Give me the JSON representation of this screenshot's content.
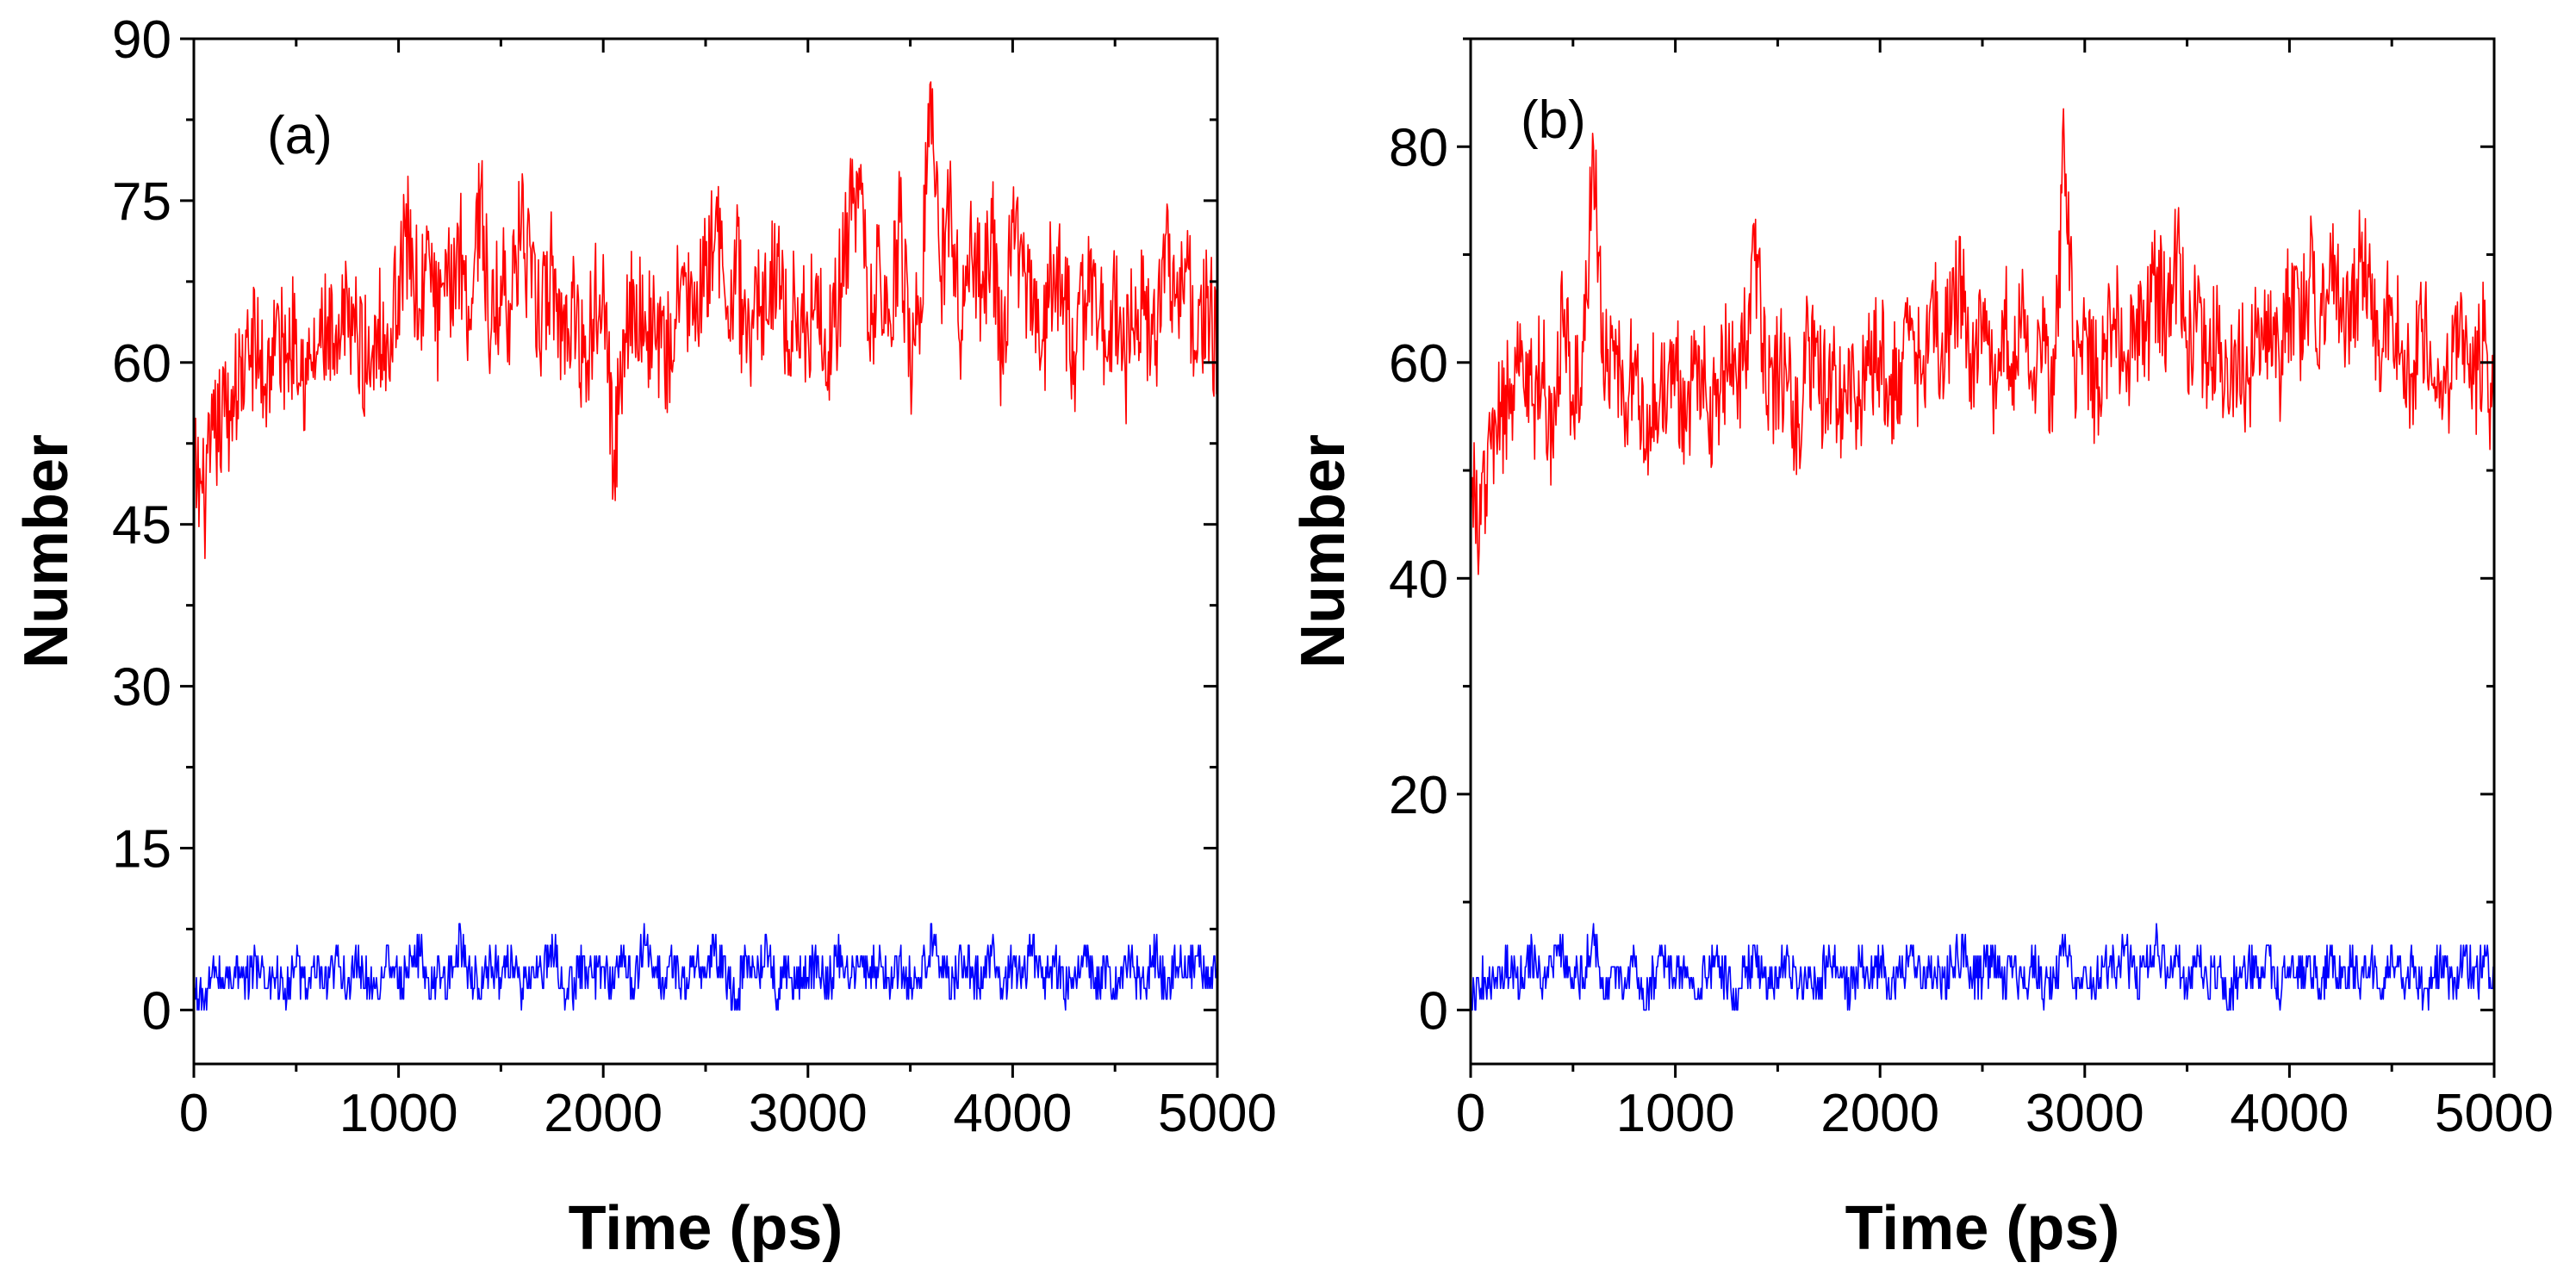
{
  "chart_data": [
    {
      "type": "line",
      "panel_label": "(a)",
      "xlabel": "Time (ps)",
      "ylabel": "Number",
      "xlim": [
        0,
        5000
      ],
      "ylim": [
        -5,
        90
      ],
      "x_ticks": [
        0,
        1000,
        2000,
        3000,
        4000,
        5000
      ],
      "x_tick_labels": [
        "0",
        "1000",
        "2000",
        "3000",
        "4000",
        "5000"
      ],
      "y_ticks": [
        0,
        15,
        30,
        45,
        60,
        75,
        90
      ],
      "y_tick_labels": [
        "0",
        "15",
        "30",
        "45",
        "60",
        "75",
        "90"
      ],
      "series": [
        {
          "name": "red series",
          "color": "#ff0000",
          "x": [
            0,
            50,
            100,
            150,
            200,
            250,
            300,
            350,
            400,
            450,
            500,
            550,
            600,
            650,
            700,
            750,
            800,
            850,
            900,
            950,
            1000,
            1050,
            1100,
            1150,
            1200,
            1250,
            1300,
            1350,
            1400,
            1450,
            1500,
            1550,
            1600,
            1650,
            1700,
            1750,
            1800,
            1850,
            1900,
            1950,
            2000,
            2050,
            2100,
            2150,
            2200,
            2250,
            2300,
            2350,
            2400,
            2450,
            2500,
            2550,
            2600,
            2650,
            2700,
            2750,
            2800,
            2850,
            2900,
            2950,
            3000,
            3050,
            3100,
            3150,
            3200,
            3250,
            3300,
            3350,
            3400,
            3450,
            3500,
            3550,
            3600,
            3650,
            3700,
            3750,
            3800,
            3850,
            3900,
            3950,
            4000,
            4050,
            4100,
            4150,
            4200,
            4250,
            4300,
            4350,
            4400,
            4450,
            4500,
            4550,
            4600,
            4650,
            4700,
            4750,
            4800,
            4850,
            4900,
            4950,
            5000
          ],
          "values": [
            50,
            47,
            53,
            55,
            57,
            60,
            62,
            58,
            63,
            60,
            64,
            58,
            61,
            63,
            59,
            66,
            62,
            60,
            64,
            61,
            68,
            72,
            65,
            70,
            63,
            67,
            71,
            64,
            76,
            62,
            68,
            65,
            73,
            66,
            64,
            69,
            62,
            66,
            60,
            64,
            70,
            49,
            63,
            67,
            62,
            65,
            59,
            64,
            68,
            62,
            69,
            74,
            64,
            70,
            60,
            67,
            64,
            71,
            62,
            66,
            63,
            68,
            61,
            66,
            72,
            78,
            62,
            70,
            64,
            73,
            60,
            66,
            86,
            68,
            75,
            63,
            70,
            66,
            72,
            60,
            73,
            68,
            64,
            62,
            70,
            66,
            61,
            65,
            68,
            63,
            66,
            59,
            67,
            64,
            62,
            72,
            66,
            69,
            60,
            66,
            61
          ]
        },
        {
          "name": "blue series",
          "color": "#0000ff",
          "x": [
            0,
            50,
            100,
            150,
            200,
            250,
            300,
            350,
            400,
            450,
            500,
            550,
            600,
            650,
            700,
            750,
            800,
            850,
            900,
            950,
            1000,
            1050,
            1100,
            1150,
            1200,
            1250,
            1300,
            1350,
            1400,
            1450,
            1500,
            1550,
            1600,
            1650,
            1700,
            1750,
            1800,
            1850,
            1900,
            1950,
            2000,
            2050,
            2100,
            2150,
            2200,
            2250,
            2300,
            2350,
            2400,
            2450,
            2500,
            2550,
            2600,
            2650,
            2700,
            2750,
            2800,
            2850,
            2900,
            2950,
            3000,
            3050,
            3100,
            3150,
            3200,
            3250,
            3300,
            3350,
            3400,
            3450,
            3500,
            3550,
            3600,
            3650,
            3700,
            3750,
            3800,
            3850,
            3900,
            3950,
            4000,
            4050,
            4100,
            4150,
            4200,
            4250,
            4300,
            4350,
            4400,
            4450,
            4500,
            4550,
            4600,
            4650,
            4700,
            4750,
            4800,
            4850,
            4900,
            4950,
            5000
          ],
          "values": [
            1,
            0,
            3,
            2,
            4,
            1,
            5,
            2,
            3,
            0,
            4,
            2,
            3,
            1,
            5,
            2,
            4,
            3,
            1,
            6,
            2,
            3,
            7,
            1,
            4,
            2,
            8,
            3,
            1,
            5,
            2,
            6,
            0,
            4,
            3,
            7,
            2,
            1,
            5,
            3,
            4,
            2,
            6,
            1,
            8,
            3,
            2,
            5,
            1,
            4,
            3,
            7,
            2,
            0,
            5,
            3,
            6,
            1,
            4,
            2,
            3,
            5,
            1,
            7,
            2,
            4,
            3,
            6,
            1,
            5,
            2,
            3,
            8,
            4,
            1,
            5,
            3,
            2,
            6,
            1,
            4,
            3,
            7,
            2,
            5,
            1,
            3,
            6,
            2,
            4,
            1,
            5,
            3,
            2,
            6,
            1,
            4,
            3,
            5,
            2,
            6
          ]
        }
      ]
    },
    {
      "type": "line",
      "panel_label": "(b)",
      "xlabel": "Time (ps)",
      "ylabel": "Number",
      "xlim": [
        0,
        5000
      ],
      "ylim": [
        -5,
        90
      ],
      "x_ticks": [
        0,
        1000,
        2000,
        3000,
        4000,
        5000
      ],
      "x_tick_labels": [
        "0",
        "1000",
        "2000",
        "3000",
        "4000",
        "5000"
      ],
      "y_ticks": [
        0,
        20,
        40,
        60,
        80
      ],
      "y_tick_labels": [
        "0",
        "20",
        "40",
        "60",
        "80"
      ],
      "series": [
        {
          "name": "red series",
          "color": "#ff0000",
          "x": [
            0,
            50,
            100,
            150,
            200,
            250,
            300,
            350,
            400,
            450,
            500,
            550,
            600,
            650,
            700,
            750,
            800,
            850,
            900,
            950,
            1000,
            1050,
            1100,
            1150,
            1200,
            1250,
            1300,
            1350,
            1400,
            1450,
            1500,
            1550,
            1600,
            1650,
            1700,
            1750,
            1800,
            1850,
            1900,
            1950,
            2000,
            2050,
            2100,
            2150,
            2200,
            2250,
            2300,
            2350,
            2400,
            2450,
            2500,
            2550,
            2600,
            2650,
            2700,
            2750,
            2800,
            2850,
            2900,
            2950,
            3000,
            3050,
            3100,
            3150,
            3200,
            3250,
            3300,
            3350,
            3400,
            3450,
            3500,
            3550,
            3600,
            3650,
            3700,
            3750,
            3800,
            3850,
            3900,
            3950,
            4000,
            4050,
            4100,
            4150,
            4200,
            4250,
            4300,
            4350,
            4400,
            4450,
            4500,
            4550,
            4600,
            4650,
            4700,
            4750,
            4800,
            4850,
            4900,
            4950,
            5000
          ],
          "values": [
            48,
            45,
            52,
            55,
            58,
            62,
            56,
            60,
            53,
            64,
            57,
            61,
            80,
            58,
            62,
            55,
            60,
            52,
            58,
            56,
            60,
            54,
            62,
            57,
            55,
            60,
            58,
            62,
            70,
            56,
            60,
            58,
            54,
            62,
            57,
            60,
            55,
            61,
            56,
            59,
            62,
            57,
            60,
            63,
            58,
            66,
            61,
            64,
            68,
            60,
            63,
            58,
            64,
            61,
            66,
            59,
            62,
            57,
            80,
            60,
            63,
            58,
            61,
            64,
            60,
            63,
            62,
            68,
            64,
            70,
            62,
            65,
            60,
            63,
            56,
            62,
            58,
            64,
            61,
            60,
            66,
            63,
            68,
            64,
            72,
            66,
            62,
            70,
            64,
            60,
            66,
            62,
            59,
            64,
            58,
            56,
            61,
            63,
            58,
            62,
            54
          ]
        },
        {
          "name": "blue series",
          "color": "#0000ff",
          "x": [
            0,
            50,
            100,
            150,
            200,
            250,
            300,
            350,
            400,
            450,
            500,
            550,
            600,
            650,
            700,
            750,
            800,
            850,
            900,
            950,
            1000,
            1050,
            1100,
            1150,
            1200,
            1250,
            1300,
            1350,
            1400,
            1450,
            1500,
            1550,
            1600,
            1650,
            1700,
            1750,
            1800,
            1850,
            1900,
            1950,
            2000,
            2050,
            2100,
            2150,
            2200,
            2250,
            2300,
            2350,
            2400,
            2450,
            2500,
            2550,
            2600,
            2650,
            2700,
            2750,
            2800,
            2850,
            2900,
            2950,
            3000,
            3050,
            3100,
            3150,
            3200,
            3250,
            3300,
            3350,
            3400,
            3450,
            3500,
            3550,
            3600,
            3650,
            3700,
            3750,
            3800,
            3850,
            3900,
            3950,
            4000,
            4050,
            4100,
            4150,
            4200,
            4250,
            4300,
            4350,
            4400,
            4450,
            4500,
            4550,
            4600,
            4650,
            4700,
            4750,
            4800,
            4850,
            4900,
            4950,
            5000
          ],
          "values": [
            0,
            2,
            1,
            3,
            5,
            2,
            6,
            1,
            4,
            7,
            2,
            3,
            8,
            1,
            4,
            2,
            5,
            0,
            3,
            6,
            2,
            4,
            1,
            3,
            5,
            2,
            0,
            4,
            6,
            1,
            3,
            5,
            2,
            4,
            1,
            6,
            3,
            0,
            5,
            2,
            4,
            1,
            3,
            6,
            2,
            5,
            1,
            4,
            7,
            2,
            3,
            6,
            1,
            4,
            2,
            5,
            0,
            3,
            6,
            2,
            4,
            1,
            5,
            3,
            6,
            2,
            4,
            8,
            3,
            5,
            1,
            6,
            2,
            4,
            0,
            3,
            5,
            2,
            6,
            1,
            4,
            3,
            5,
            1,
            6,
            2,
            4,
            3,
            5,
            1,
            6,
            2,
            4,
            0,
            3,
            5,
            1,
            6,
            2,
            4,
            3
          ]
        }
      ]
    }
  ]
}
